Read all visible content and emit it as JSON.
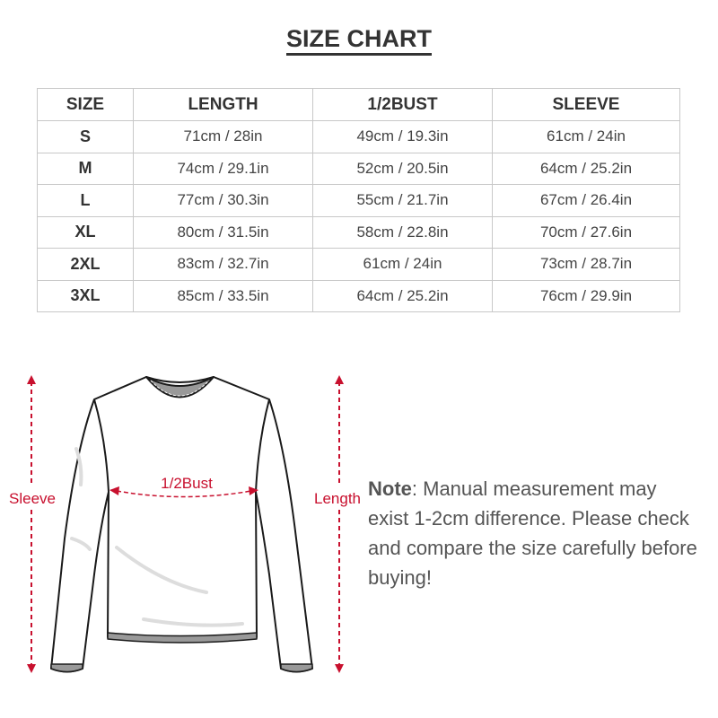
{
  "title": "SIZE CHART",
  "table": {
    "headers": [
      "SIZE",
      "LENGTH",
      "1/2BUST",
      "SLEEVE"
    ],
    "rows": [
      [
        "S",
        "71cm / 28in",
        "49cm / 19.3in",
        "61cm / 24in"
      ],
      [
        "M",
        "74cm / 29.1in",
        "52cm / 20.5in",
        "64cm / 25.2in"
      ],
      [
        "L",
        "77cm / 30.3in",
        "55cm / 21.7in",
        "67cm / 26.4in"
      ],
      [
        "XL",
        "80cm / 31.5in",
        "58cm / 22.8in",
        "70cm / 27.6in"
      ],
      [
        "2XL",
        "83cm / 32.7in",
        "61cm / 24in",
        "73cm / 28.7in"
      ],
      [
        "3XL",
        "85cm / 33.5in",
        "64cm / 25.2in",
        "76cm / 29.9in"
      ]
    ]
  },
  "diagram": {
    "sleeve_label": "Sleeve",
    "bust_label": "1/2Bust",
    "length_label": "Length",
    "accent_color": "#c8102e"
  },
  "note": {
    "label": "Note",
    "text": ": Manual measurement may exist 1-2cm difference. Please check and compare the size carefully before buying!"
  }
}
